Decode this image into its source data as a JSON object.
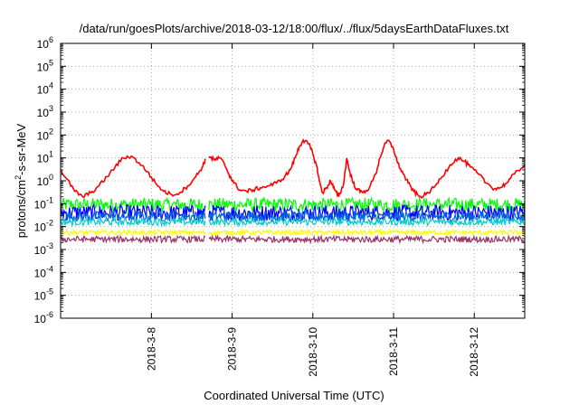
{
  "chart_data": {
    "type": "line",
    "title": "/data/run/goesPlots/archive/2018-03-12/18:00/flux/../flux/5daysEarthDataFluxes.txt",
    "xlabel": "Coordinated Universal Time (UTC)",
    "ylabel": "protons/cm²-s-sr-MeV",
    "ylabel_parts": {
      "pre": "protons/cm",
      "sup": "2",
      "post": "-s-sr-MeV"
    },
    "yscale": "log",
    "ylim": [
      1e-06,
      1000000.0
    ],
    "y_tick_exponents": [
      -6,
      -5,
      -4,
      -3,
      -2,
      -1,
      0,
      1,
      2,
      3,
      4,
      5,
      6
    ],
    "y_tick_base": "10",
    "xlim": [
      "2018-03-07 03:00",
      "2018-03-12 21:00"
    ],
    "x_ticks": [
      "2018-3-8",
      "2018-3-9",
      "2018-3-10",
      "2018-3-11",
      "2018-3-12"
    ],
    "x_tick_days": [
      1,
      2,
      3,
      4,
      5
    ],
    "x_range_days": [
      -0.125,
      5.625
    ],
    "grid": true,
    "gap_days": [
      1.67,
      1.71
    ],
    "series": [
      {
        "color": "#ff0000",
        "x": [
          -0.125,
          -0.05,
          0.05,
          0.15,
          0.25,
          0.35,
          0.45,
          0.55,
          0.65,
          0.75,
          0.85,
          0.95,
          1.05,
          1.15,
          1.25,
          1.35,
          1.45,
          1.55,
          1.63,
          1.67,
          1.72,
          1.78,
          1.84,
          1.9,
          1.96,
          2.02,
          2.1,
          2.18,
          2.26,
          2.35,
          2.45,
          2.55,
          2.65,
          2.72,
          2.78,
          2.83,
          2.88,
          2.95,
          3.0,
          3.05,
          3.08,
          3.12,
          3.17,
          3.22,
          3.27,
          3.32,
          3.38,
          3.42,
          3.45,
          3.5,
          3.55,
          3.62,
          3.7,
          3.78,
          3.83,
          3.88,
          3.93,
          4.0,
          4.05,
          4.12,
          4.18,
          4.25,
          4.32,
          4.4,
          4.5,
          4.6,
          4.7,
          4.8,
          4.88,
          4.95,
          5.05,
          5.15,
          5.25,
          5.32,
          5.4,
          5.5,
          5.625
        ],
        "values": [
          3.0,
          1.2,
          0.35,
          0.2,
          0.3,
          0.6,
          1.5,
          4.0,
          10.0,
          12.0,
          6.0,
          2.5,
          0.8,
          0.35,
          0.25,
          0.3,
          0.6,
          1.5,
          4.0,
          9.0,
          11.0,
          8.0,
          10.0,
          6.0,
          2.0,
          0.8,
          0.4,
          0.35,
          0.4,
          0.5,
          0.6,
          0.8,
          1.5,
          3.0,
          10.0,
          30.0,
          60.0,
          40.0,
          15.0,
          4.0,
          1.0,
          0.3,
          0.5,
          1.0,
          0.4,
          0.2,
          0.7,
          10.0,
          3.0,
          0.8,
          0.4,
          0.3,
          0.5,
          2.0,
          10.0,
          30.0,
          60.0,
          25.0,
          6.0,
          2.0,
          0.8,
          0.35,
          0.2,
          0.25,
          0.5,
          1.5,
          5.0,
          10.0,
          7.0,
          4.0,
          2.0,
          0.8,
          0.45,
          0.5,
          0.8,
          2.0,
          5.0
        ]
      },
      {
        "color": "#00ff00",
        "level": 0.09,
        "spread": 0.6
      },
      {
        "color": "#0000ff",
        "level": 0.04,
        "spread": 0.7
      },
      {
        "color": "#0066dd",
        "level": 0.028,
        "spread": 0.45
      },
      {
        "color": "#00cccc",
        "level": 0.016,
        "spread": 0.3
      },
      {
        "color": "#ffff00",
        "level": 0.0055,
        "spread": 0.22
      },
      {
        "color": "#993366",
        "level": 0.0028,
        "spread": 0.28
      }
    ]
  }
}
